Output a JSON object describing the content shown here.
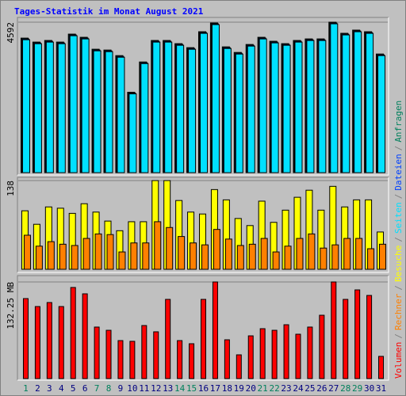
{
  "chart_data": [
    {
      "type": "bar",
      "title": "Tages-Statistik im Monat August 2021",
      "legend_separator": "/",
      "ylim": [
        0,
        4592
      ],
      "yticks": [
        4592
      ],
      "series": [
        {
          "name": "Anfragen",
          "color": "#00805c",
          "values": [
            4106,
            3985,
            4034,
            3985,
            4228,
            4131,
            3767,
            3742,
            3572,
            2454,
            3378,
            4034,
            4034,
            3937,
            3815,
            4301,
            4568,
            3839,
            3669,
            3912,
            4131,
            4010,
            3937,
            4034,
            4082,
            4082,
            4592,
            4253,
            4350,
            4301,
            3621
          ]
        },
        {
          "name": "Dateien",
          "color": "#0040ff",
          "values": [
            4081,
            3960,
            4009,
            3960,
            4203,
            4106,
            3742,
            3717,
            3547,
            2429,
            3353,
            4009,
            4009,
            3912,
            3790,
            4276,
            4543,
            3814,
            3644,
            3887,
            4106,
            3985,
            3912,
            4009,
            4057,
            4057,
            4567,
            4228,
            4325,
            4276,
            3596
          ]
        },
        {
          "name": "Seiten",
          "color": "#00e0ff",
          "values": [
            4056,
            3935,
            3984,
            3935,
            4178,
            4081,
            3717,
            3692,
            3522,
            2404,
            3328,
            3984,
            3984,
            3887,
            3765,
            4251,
            4518,
            3789,
            3619,
            3862,
            4081,
            3960,
            3887,
            3984,
            4032,
            4032,
            4542,
            4203,
            4300,
            4251,
            3571
          ]
        }
      ]
    },
    {
      "type": "bar",
      "ylim": [
        0,
        138
      ],
      "yticks": [
        138
      ],
      "series": [
        {
          "name": "Besuche",
          "color": "#ffff00",
          "values": [
            91,
            70,
            97,
            95,
            87,
            102,
            89,
            75,
            60,
            74,
            74,
            138,
            138,
            107,
            89,
            86,
            124,
            108,
            79,
            68,
            106,
            73,
            92,
            112,
            123,
            92,
            129,
            97,
            108,
            108,
            58
          ]
        },
        {
          "name": "Rechner",
          "color": "#ff8000",
          "values": [
            53,
            36,
            43,
            39,
            37,
            48,
            55,
            54,
            27,
            41,
            41,
            74,
            65,
            51,
            41,
            38,
            62,
            47,
            37,
            39,
            48,
            27,
            36,
            48,
            55,
            33,
            38,
            48,
            48,
            32,
            39
          ]
        }
      ]
    },
    {
      "type": "bar",
      "ylim": [
        0,
        132.25
      ],
      "yticks": [
        {
          "value": 132.25,
          "label": "132.25 MB"
        }
      ],
      "categories": [
        "1",
        "2",
        "3",
        "4",
        "5",
        "6",
        "7",
        "8",
        "9",
        "10",
        "11",
        "12",
        "13",
        "14",
        "15",
        "16",
        "17",
        "18",
        "19",
        "20",
        "21",
        "22",
        "23",
        "24",
        "25",
        "26",
        "27",
        "28",
        "29",
        "30",
        "31"
      ],
      "category_colors": [
        "#00805c",
        "#000080",
        "#000080",
        "#000080",
        "#000080",
        "#000080",
        "#00805c",
        "#00805c",
        "#000080",
        "#000080",
        "#000080",
        "#000080",
        "#000080",
        "#00805c",
        "#00805c",
        "#000080",
        "#000080",
        "#000080",
        "#000080",
        "#000080",
        "#00805c",
        "#00805c",
        "#000080",
        "#000080",
        "#000080",
        "#000080",
        "#000080",
        "#00805c",
        "#00805c",
        "#000080",
        "#000080"
      ],
      "series": [
        {
          "name": "Volumen",
          "color": "#ff0000",
          "values": [
            109.5,
            98.6,
            104.1,
            98.6,
            124.7,
            116.0,
            70.5,
            66.1,
            52.0,
            51.0,
            72.6,
            64.0,
            108.4,
            52.0,
            47.7,
            108.4,
            132.25,
            53.1,
            32.5,
            58.5,
            68.3,
            66.1,
            73.7,
            60.7,
            70.5,
            86.7,
            132.25,
            108.4,
            121.4,
            113.8,
            30.4
          ]
        }
      ]
    }
  ]
}
